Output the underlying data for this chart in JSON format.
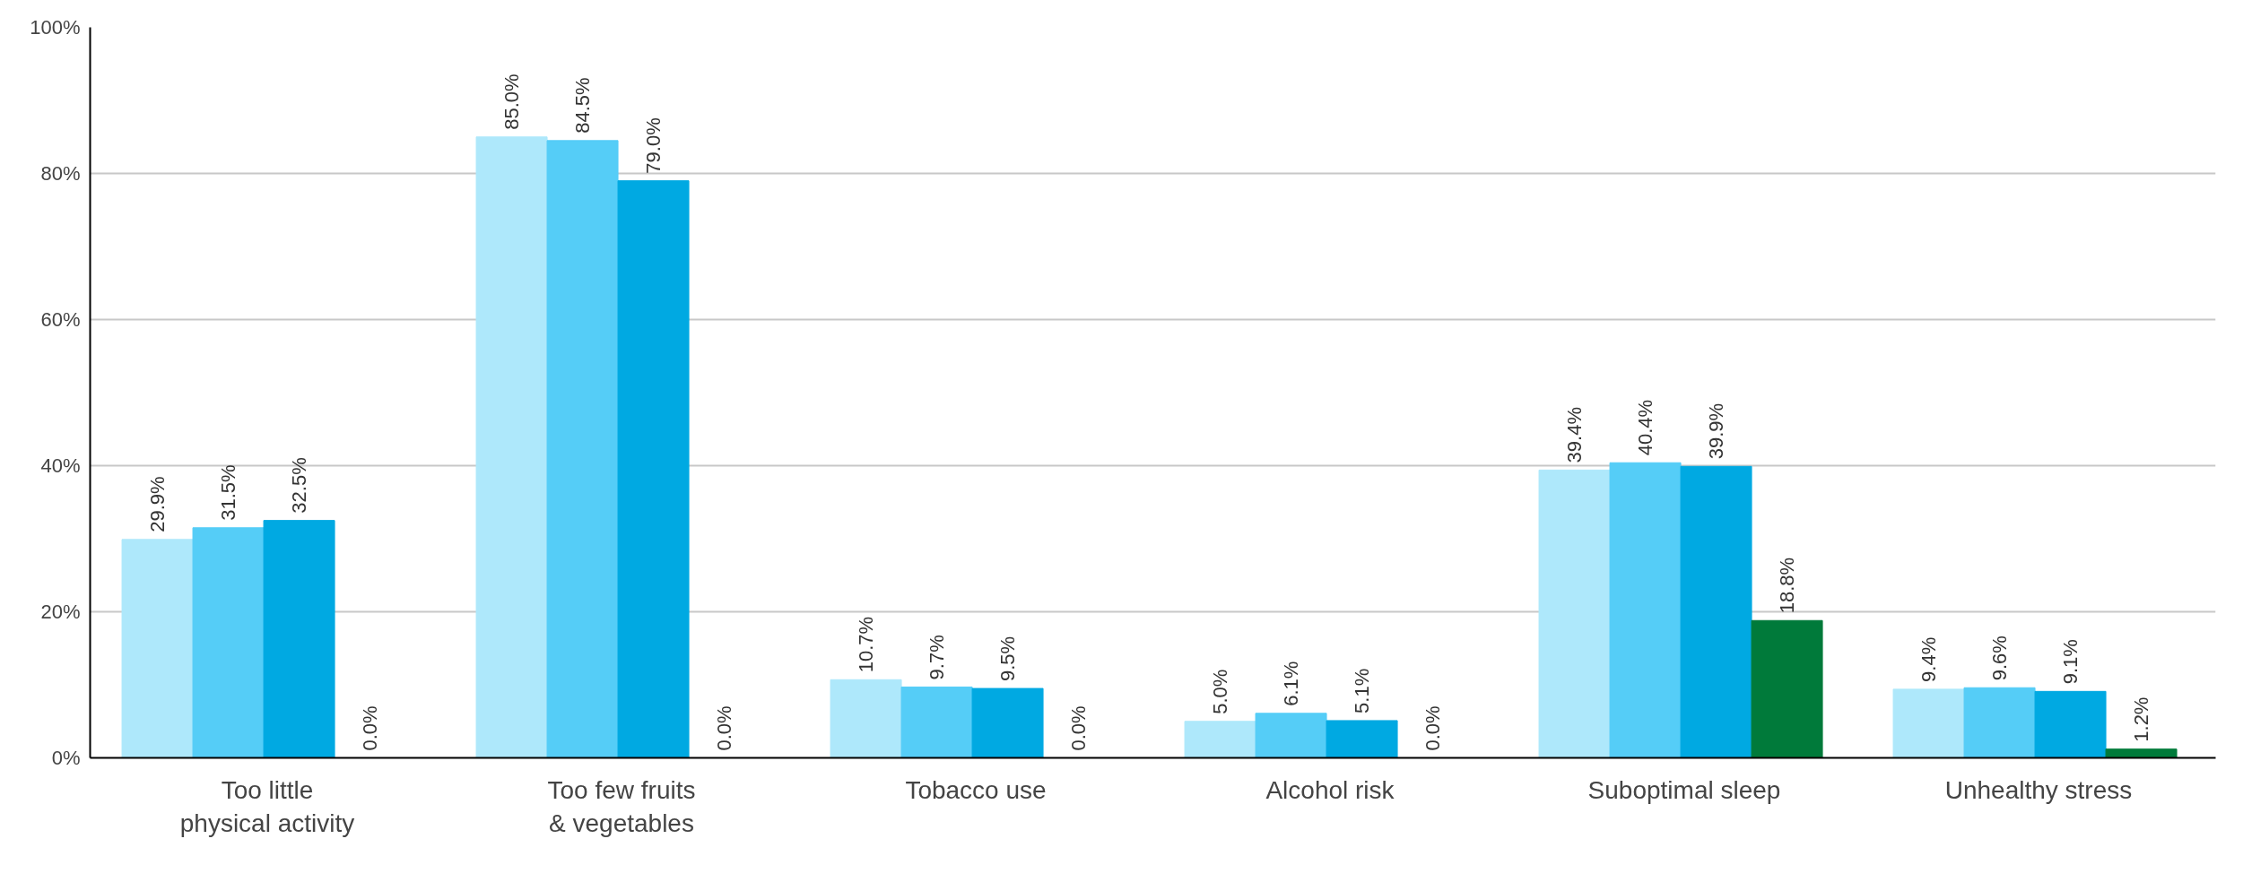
{
  "chart_data": {
    "type": "bar",
    "categories": [
      "Too little\nphysical activity",
      "Too few fruits\n& vegetables",
      "Tobacco use",
      "Alcohol risk",
      "Suboptimal sleep",
      "Unhealthy stress"
    ],
    "series": [
      {
        "color": "#aee8fb",
        "values": [
          29.9,
          85.0,
          10.7,
          5.0,
          39.4,
          9.4
        ],
        "value_labels": [
          "29.9%",
          "85.0%",
          "10.7%",
          "5.0%",
          "39.4%",
          "9.4%"
        ]
      },
      {
        "color": "#55cdf7",
        "values": [
          31.5,
          84.5,
          9.7,
          6.1,
          40.4,
          9.6
        ],
        "value_labels": [
          "31.5%",
          "84.5%",
          "9.7%",
          "6.1%",
          "40.4%",
          "9.6%"
        ]
      },
      {
        "color": "#00a9e2",
        "values": [
          32.5,
          79.0,
          9.5,
          5.1,
          39.9,
          9.1
        ],
        "value_labels": [
          "32.5%",
          "79.0%",
          "9.5%",
          "5.1%",
          "39.9%",
          "9.1%"
        ]
      },
      {
        "color": "#007a3a",
        "values": [
          0.0,
          0.0,
          0.0,
          0.0,
          18.8,
          1.2
        ],
        "value_labels": [
          "0.0%",
          "0.0%",
          "0.0%",
          "0.0%",
          "18.8%",
          "1.2%"
        ]
      }
    ],
    "ylim": [
      0,
      100
    ],
    "yticks": [
      {
        "value": 0,
        "label": "0%"
      },
      {
        "value": 20,
        "label": "20%"
      },
      {
        "value": 40,
        "label": "40%"
      },
      {
        "value": 60,
        "label": "60%"
      },
      {
        "value": 80,
        "label": "80%"
      },
      {
        "value": 100,
        "label": "100%"
      }
    ],
    "grid": "y"
  }
}
